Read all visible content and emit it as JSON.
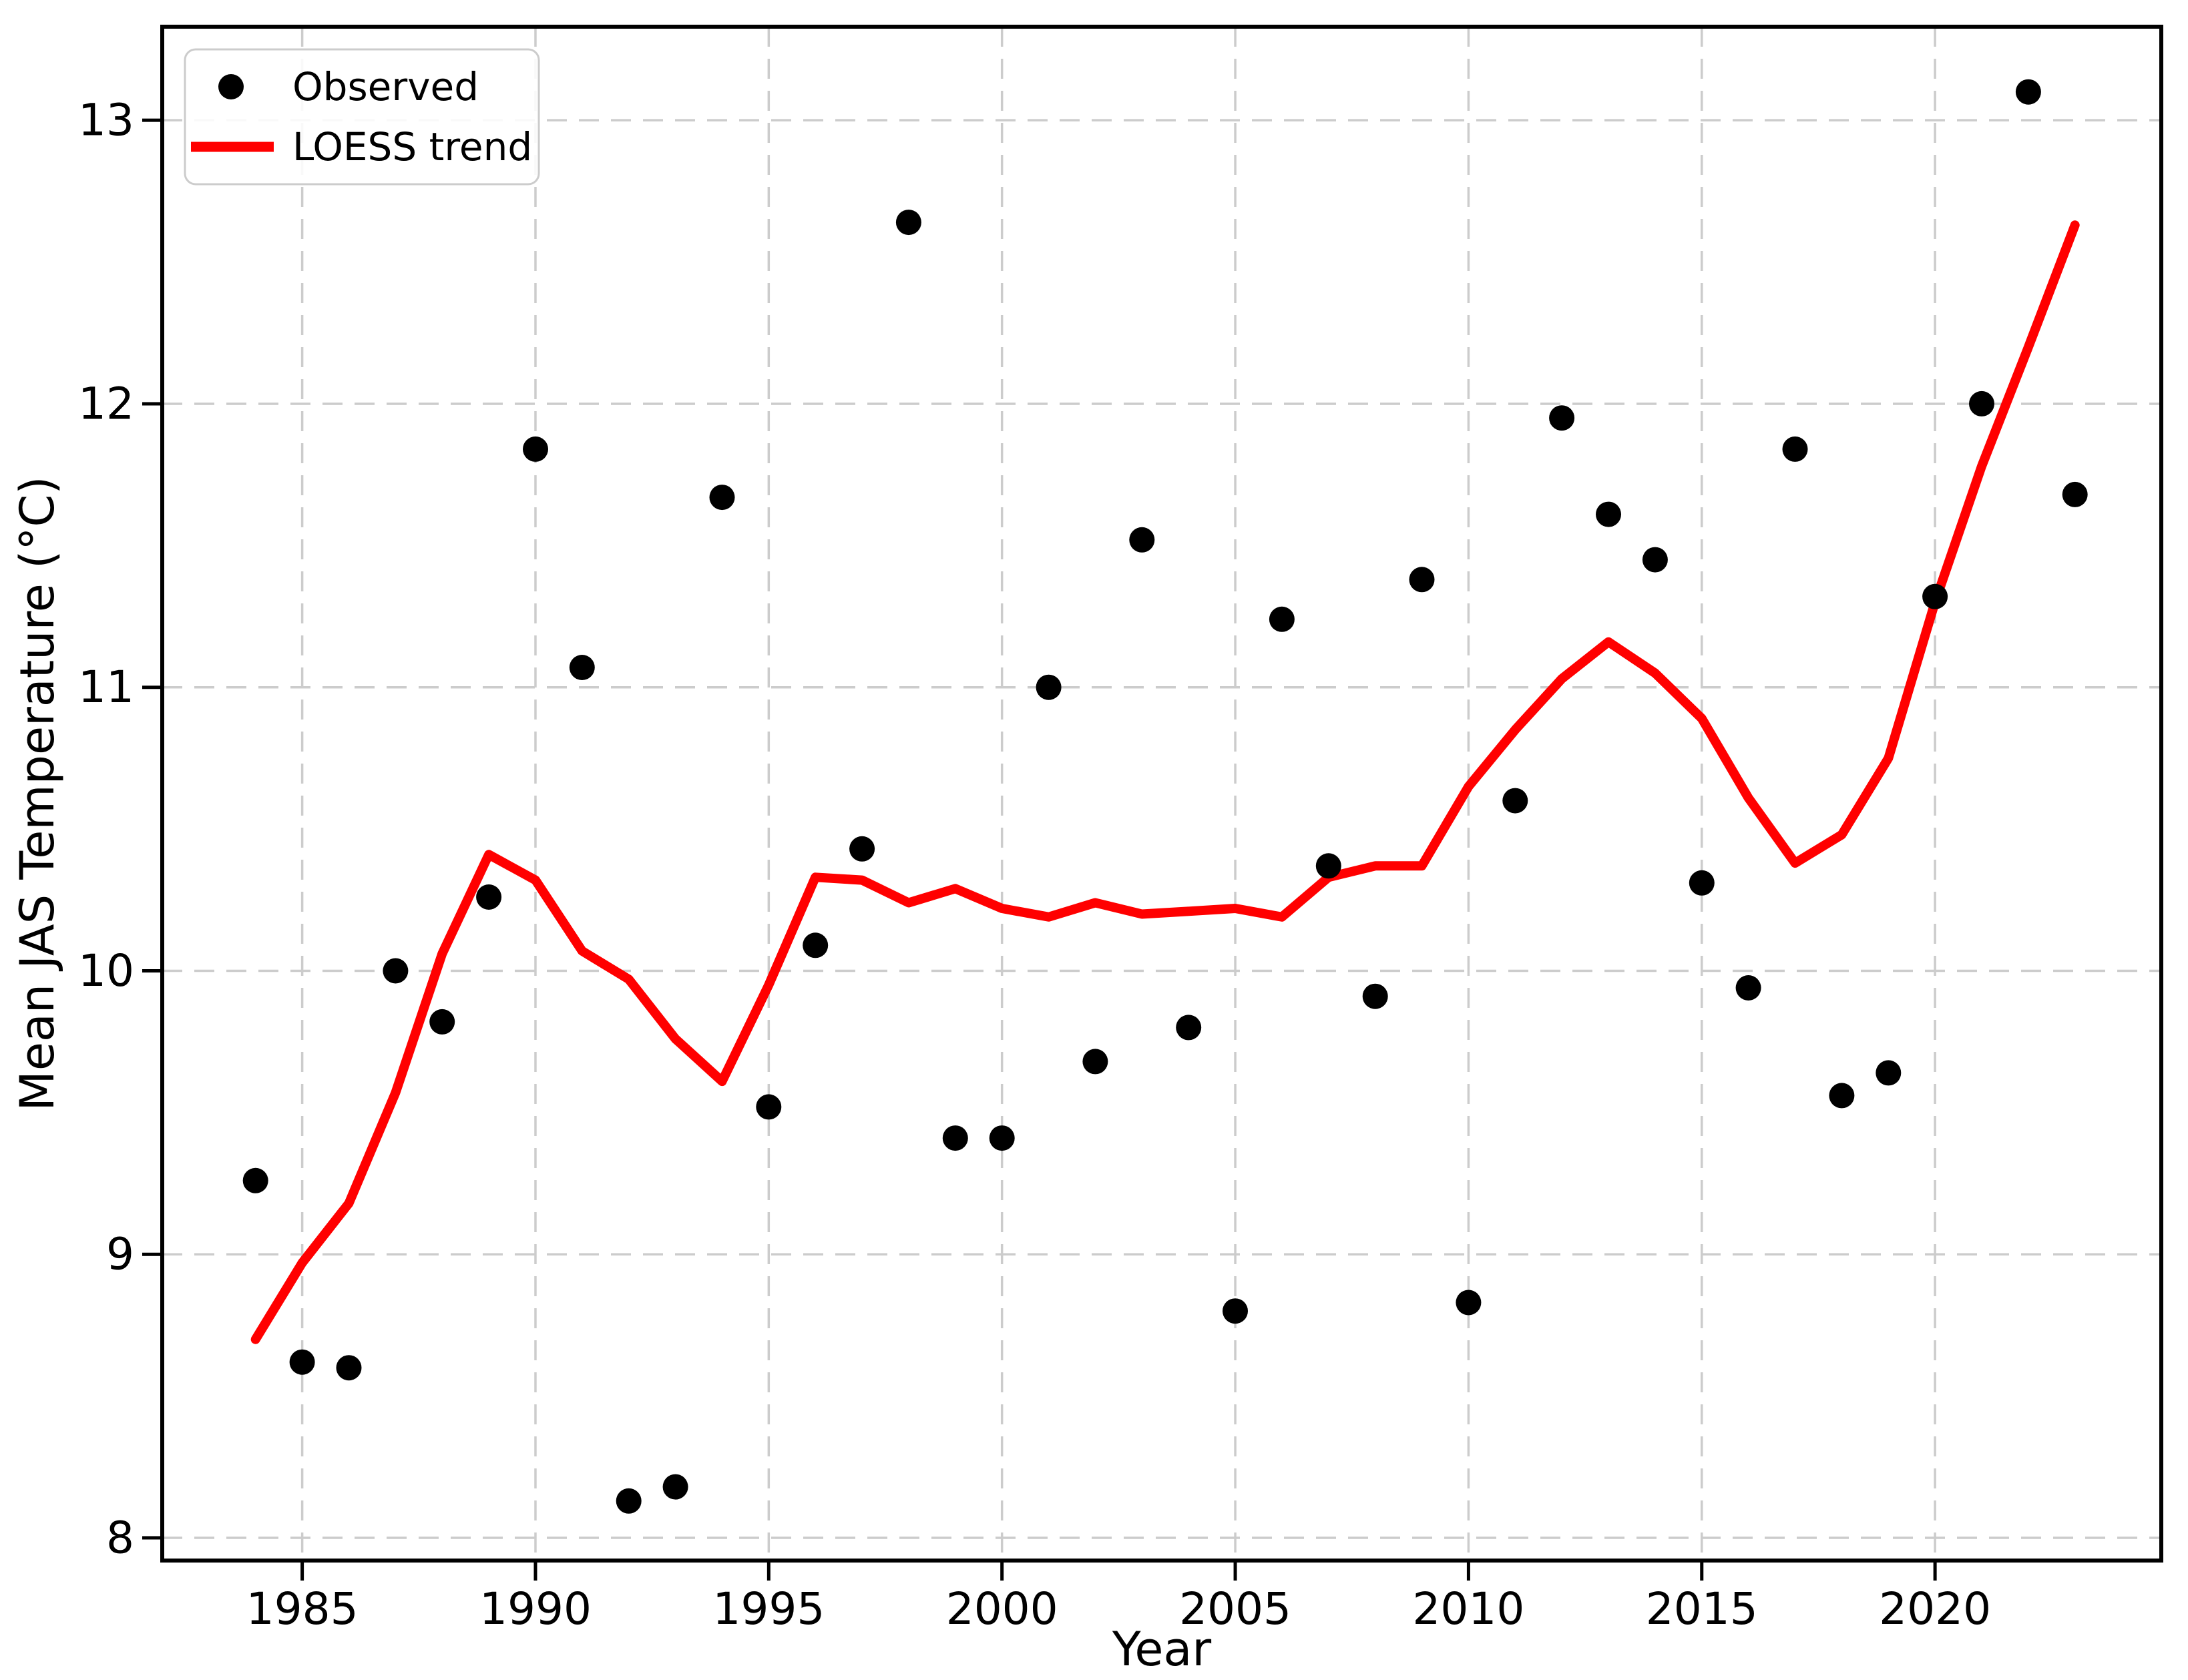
{
  "figure": {
    "background": "#ffffff"
  },
  "chart_data": {
    "type": "scatter",
    "title": "",
    "xlabel": "Year",
    "ylabel": "Mean JAS Temperature (°C)",
    "xlim": [
      1982.0,
      2024.85
    ],
    "ylim": [
      7.92,
      13.33
    ],
    "xticks": [
      1985,
      1990,
      1995,
      2000,
      2005,
      2010,
      2015,
      2020
    ],
    "yticks": [
      8,
      9,
      10,
      11,
      12,
      13
    ],
    "grid": "dashed-both-axes",
    "legend_position": "upper-left",
    "x": [
      1984,
      1985,
      1986,
      1987,
      1988,
      1989,
      1990,
      1991,
      1992,
      1993,
      1994,
      1995,
      1996,
      1997,
      1998,
      1999,
      2000,
      2001,
      2002,
      2003,
      2004,
      2005,
      2006,
      2007,
      2008,
      2009,
      2010,
      2011,
      2012,
      2013,
      2014,
      2015,
      2016,
      2017,
      2018,
      2019,
      2020,
      2021,
      2022,
      2023
    ],
    "series": [
      {
        "name": "Observed",
        "kind": "scatter",
        "color": "#000000",
        "values": [
          9.26,
          8.62,
          8.6,
          10.0,
          9.82,
          10.26,
          11.84,
          11.07,
          8.13,
          8.18,
          11.67,
          9.52,
          10.09,
          10.43,
          12.64,
          9.41,
          9.41,
          11.0,
          9.68,
          11.52,
          9.8,
          8.8,
          11.24,
          10.37,
          9.91,
          11.38,
          8.83,
          10.6,
          11.95,
          11.61,
          11.45,
          10.31,
          9.94,
          11.84,
          9.56,
          9.64,
          11.32,
          12.0,
          13.1,
          11.68
        ]
      },
      {
        "name": "LOESS trend",
        "kind": "line",
        "color": "#ff0000",
        "values": [
          8.7,
          8.97,
          9.18,
          9.57,
          10.06,
          10.41,
          10.32,
          10.07,
          9.97,
          9.76,
          9.61,
          9.95,
          10.33,
          10.32,
          10.24,
          10.29,
          10.22,
          10.19,
          10.24,
          10.2,
          10.21,
          10.22,
          10.19,
          10.33,
          10.37,
          10.37,
          10.65,
          10.85,
          11.03,
          11.16,
          11.05,
          10.89,
          10.61,
          10.38,
          10.48,
          10.75,
          11.3,
          11.78,
          12.2,
          12.63
        ]
      }
    ]
  },
  "legend": {
    "items": [
      {
        "label": "Observed",
        "marker": "dot-marker",
        "color": "#000000"
      },
      {
        "label": "LOESS trend",
        "marker": "line-marker",
        "color": "#ff0000"
      }
    ]
  },
  "colors": {
    "grid": "#cccccc",
    "spine": "#000000",
    "loess": "#ff0000",
    "points": "#000000",
    "legend_border": "#cccccc"
  }
}
